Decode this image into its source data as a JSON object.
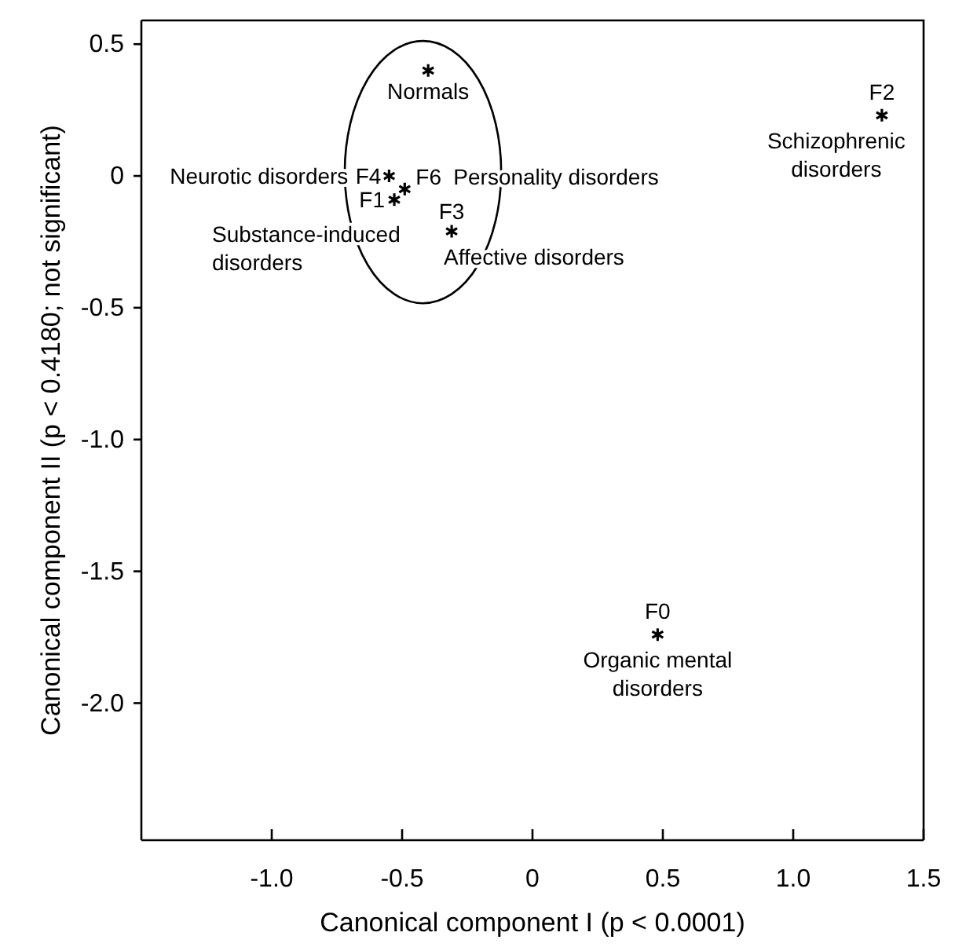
{
  "chart_data": {
    "type": "scatter",
    "xlabel": "Canonical component I (p < 0.0001)",
    "ylabel": "Canonical component II (p < 0.4180; not significant)",
    "x": [
      -0.4,
      -0.55,
      -0.53,
      -0.49,
      -0.31,
      1.34,
      0.48
    ],
    "values": [
      0.4,
      0.0,
      -0.09,
      -0.05,
      -0.21,
      0.23,
      -1.74
    ],
    "color": "#000000",
    "marker": "cross",
    "xlim": [
      -1.5,
      1.5
    ],
    "xticks": [
      {
        "value": -1.0,
        "label": "-1.0"
      },
      {
        "value": -0.5,
        "label": "-0.5"
      },
      0,
      {
        "value": 0.5,
        "label": "0.5"
      },
      {
        "value": 1.0,
        "label": "1.0"
      },
      1.5
    ],
    "ylim": [
      -2.52,
      0.59
    ],
    "yticks": [
      {
        "value": 0.5,
        "label": "0.5"
      },
      0,
      {
        "value": -0.5,
        "label": "-0.5"
      },
      {
        "value": -1.0,
        "label": "-1.0"
      },
      {
        "value": -1.5,
        "label": "-1.5"
      },
      {
        "value": -2.0,
        "label": "-2.0"
      }
    ],
    "grid": false,
    "annotations": [
      {
        "text": "Normals",
        "x": -0.4,
        "y": 0.4
      },
      {
        "text": "F4",
        "x": -0.55,
        "y": 0.0
      },
      {
        "text": "Neurotic disorders",
        "x": -0.55,
        "y": 0.0
      },
      {
        "text": "F1",
        "x": -0.53,
        "y": -0.09
      },
      {
        "text": "Substance-induced\ndisorders",
        "x": -0.53,
        "y": -0.09
      },
      {
        "text": "F6",
        "x": -0.49,
        "y": -0.05
      },
      {
        "text": "Personality disorders",
        "x": -0.49,
        "y": -0.05
      },
      {
        "text": "F3",
        "x": -0.31,
        "y": -0.21
      },
      {
        "text": "Affective disorders",
        "x": -0.31,
        "y": -0.21
      },
      {
        "text": "F2",
        "x": 1.34,
        "y": 0.23
      },
      {
        "text": "Schizophrenic\ndisorders",
        "x": 1.34,
        "y": 0.23
      },
      {
        "text": "F0",
        "x": 0.48,
        "y": -1.74
      },
      {
        "text": "Organic mental\ndisorders",
        "x": 0.48,
        "y": -1.74
      }
    ]
  }
}
